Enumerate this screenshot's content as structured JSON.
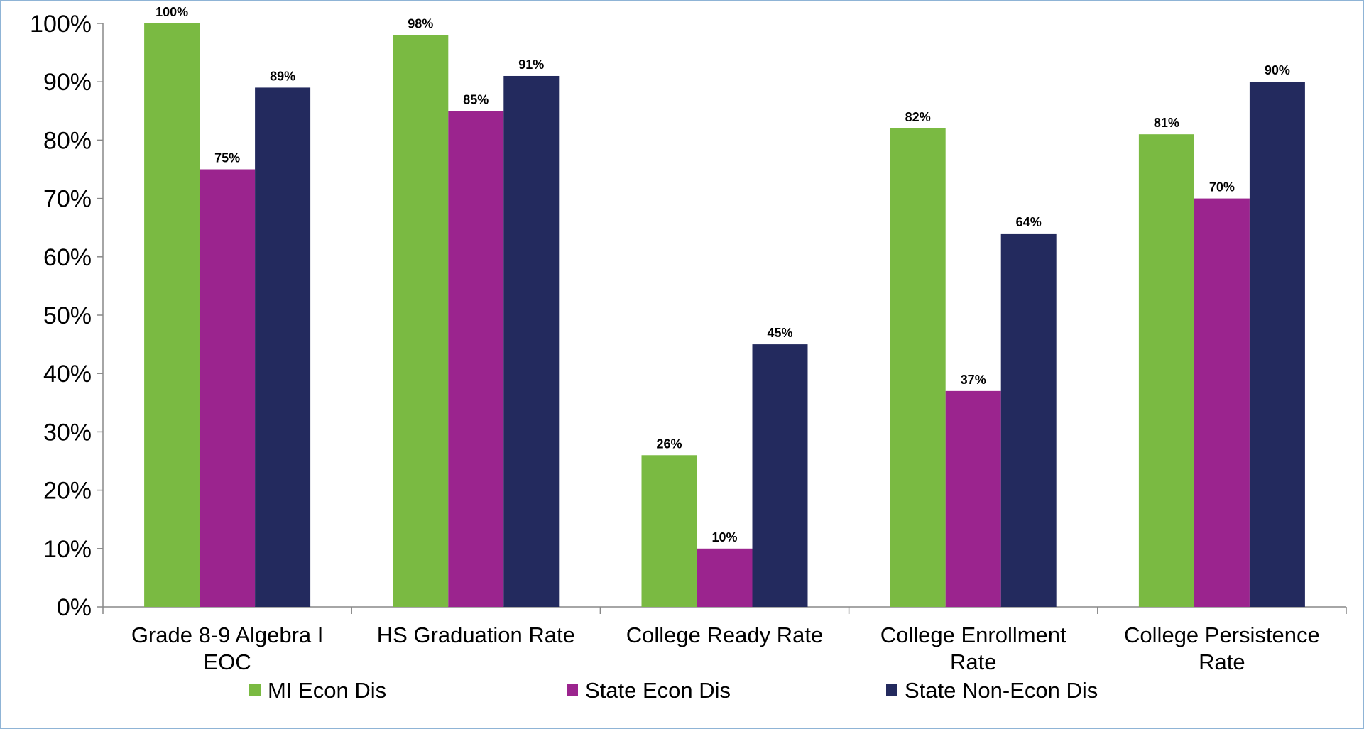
{
  "chart_data": {
    "type": "bar",
    "title": "",
    "xlabel": "",
    "ylabel": "",
    "ylim": [
      0,
      100
    ],
    "yticks": [
      0,
      10,
      20,
      30,
      40,
      50,
      60,
      70,
      80,
      90,
      100
    ],
    "ytick_labels": [
      "0%",
      "10%",
      "20%",
      "30%",
      "40%",
      "50%",
      "60%",
      "70%",
      "80%",
      "90%",
      "100%"
    ],
    "categories": [
      [
        "Grade 8-9 Algebra I",
        "EOC"
      ],
      [
        "HS Graduation Rate"
      ],
      [
        "College Ready Rate"
      ],
      [
        "College Enrollment",
        "Rate"
      ],
      [
        "College Persistence",
        "Rate"
      ]
    ],
    "series": [
      {
        "name": "MI Econ Dis",
        "color": "#7aba42",
        "values": [
          100,
          98,
          26,
          82,
          81
        ],
        "labels": [
          "100%",
          "98%",
          "26%",
          "82%",
          "81%"
        ]
      },
      {
        "name": "State Econ Dis",
        "color": "#9b248e",
        "values": [
          75,
          85,
          10,
          37,
          70
        ],
        "labels": [
          "75%",
          "85%",
          "10%",
          "37%",
          "70%"
        ]
      },
      {
        "name": "State Non-Econ Dis",
        "color": "#232a5e",
        "values": [
          89,
          91,
          45,
          64,
          90
        ],
        "labels": [
          "89%",
          "91%",
          "45%",
          "64%",
          "90%"
        ]
      }
    ],
    "grid": false,
    "legend_position": "bottom"
  }
}
